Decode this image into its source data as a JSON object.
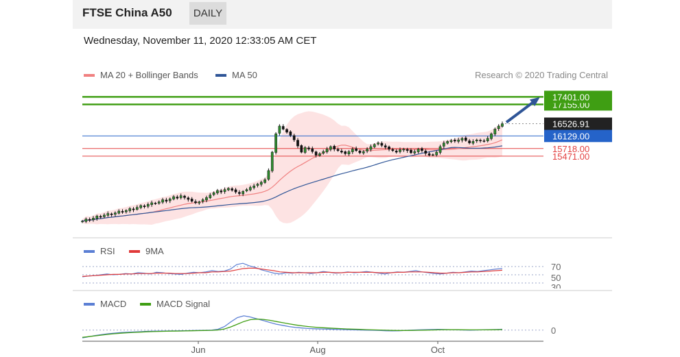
{
  "header": {
    "title": "FTSE China A50",
    "period": "DAILY"
  },
  "timestamp": "Wednesday, November 11, 2020 12:33:05 AM CET",
  "copyright": "Research © 2020 Trading Central",
  "colors": {
    "ma20": "#f08080",
    "ma50": "#2f5597",
    "bands": "#fde3e3",
    "resistance": "#3f9e13",
    "pivot": "#2563c9",
    "support": "#e34040",
    "last": "#222222",
    "rsi": "#5b7fd4",
    "rsi_ma": "#e03a3a",
    "macd": "#5b7fd4",
    "macd_signal": "#3f9e13"
  },
  "legend": {
    "ma20": "MA 20 + Bollinger Bands",
    "ma50": "MA 50",
    "rsi": "RSI",
    "rsi_ma": "9MA",
    "macd": "MACD",
    "macd_signal": "MACD Signal"
  },
  "chart_data": [
    {
      "type": "candlestick",
      "panel": "price",
      "ylim": [
        13100,
        17700
      ],
      "x_ticks": [
        "Jun",
        "Aug",
        "Oct"
      ],
      "closes": [
        13350,
        13420,
        13380,
        13450,
        13520,
        13480,
        13550,
        13600,
        13560,
        13620,
        13680,
        13640,
        13700,
        13760,
        13720,
        13800,
        13860,
        13820,
        13900,
        13950,
        13920,
        13980,
        14050,
        14000,
        14080,
        14150,
        14100,
        14180,
        14120,
        14060,
        14000,
        13950,
        13980,
        14050,
        14120,
        14200,
        14280,
        14350,
        14300,
        14380,
        14420,
        14360,
        14300,
        14250,
        14320,
        14380,
        14450,
        14500,
        14560,
        14620,
        14700,
        15000,
        15600,
        16200,
        16450,
        16350,
        16250,
        16150,
        16000,
        15800,
        15600,
        15750,
        15700,
        15620,
        15500,
        15550,
        15620,
        15700,
        15780,
        15700,
        15650,
        15600,
        15550,
        15620,
        15700,
        15650,
        15580,
        15620,
        15700,
        15780,
        15850,
        15900,
        15820,
        15760,
        15700,
        15650,
        15600,
        15680,
        15700,
        15650,
        15580,
        15620,
        15700,
        15650,
        15560,
        15500,
        15520,
        15600,
        15780,
        15900,
        15950,
        15980,
        15960,
        16000,
        16050,
        15980,
        15900,
        15950,
        16000,
        15980,
        15950,
        16050,
        16200,
        16350,
        16450,
        16526.91
      ],
      "levels": [
        {
          "label": "17401.00",
          "value": 17401,
          "kind": "resistance"
        },
        {
          "label": "17155.00",
          "value": 17155,
          "kind": "resistance"
        },
        {
          "label": "16526.91",
          "value": 16526.91,
          "kind": "last"
        },
        {
          "label": "16129.00",
          "value": 16129,
          "kind": "pivot"
        },
        {
          "label": "15718.00",
          "value": 15718,
          "kind": "support"
        },
        {
          "label": "15471.00",
          "value": 15471,
          "kind": "support"
        }
      ]
    },
    {
      "type": "line",
      "panel": "rsi",
      "ylim": [
        20,
        80
      ],
      "y_ticks": [
        "70",
        "50",
        "30"
      ],
      "series": [
        {
          "name": "RSI",
          "values": [
            45,
            47,
            48,
            50,
            52,
            50,
            51,
            53,
            52,
            55,
            54,
            52,
            56,
            55,
            53,
            52,
            51,
            54,
            56,
            55,
            57,
            60,
            58,
            59,
            64,
            75,
            78,
            72,
            68,
            62,
            58,
            54,
            52,
            55,
            54,
            56,
            55,
            53,
            55,
            58,
            56,
            54,
            55,
            57,
            55,
            56,
            58,
            56,
            54,
            52,
            55,
            57,
            56,
            58,
            60,
            57,
            55,
            53,
            52,
            54,
            56,
            55,
            57,
            59,
            58,
            60,
            62,
            64,
            65
          ]
        },
        {
          "name": "9MA",
          "values": [
            46,
            47,
            48,
            49,
            50,
            51,
            51,
            52,
            52,
            53,
            53,
            53,
            54,
            54,
            54,
            53,
            53,
            53,
            54,
            55,
            55,
            57,
            57,
            58,
            59,
            62,
            65,
            66,
            66,
            64,
            62,
            60,
            57,
            56,
            55,
            55,
            55,
            55,
            55,
            56,
            56,
            55,
            55,
            56,
            56,
            56,
            56,
            56,
            55,
            55,
            55,
            56,
            56,
            57,
            57,
            57,
            56,
            55,
            54,
            54,
            55,
            55,
            56,
            57,
            57,
            58,
            59,
            60,
            61
          ]
        }
      ]
    },
    {
      "type": "line",
      "panel": "macd",
      "y_ticks": [
        "0"
      ],
      "series": [
        {
          "name": "MACD",
          "values": [
            -260,
            -220,
            -180,
            -150,
            -120,
            -100,
            -80,
            -70,
            -60,
            -50,
            -40,
            -35,
            -30,
            -28,
            -25,
            -22,
            -18,
            -15,
            -10,
            -5,
            0,
            30,
            120,
            280,
            420,
            480,
            440,
            380,
            320,
            260,
            200,
            160,
            120,
            90,
            70,
            55,
            45,
            40,
            35,
            28,
            20,
            15,
            10,
            5,
            0,
            -5,
            -10,
            -20,
            -25,
            -20,
            -10,
            0,
            10,
            15,
            20,
            25,
            20,
            15,
            10,
            5,
            0,
            5,
            10,
            15,
            20,
            30
          ]
        },
        {
          "name": "MACD Signal",
          "values": [
            -240,
            -215,
            -190,
            -165,
            -140,
            -120,
            -102,
            -88,
            -76,
            -66,
            -56,
            -48,
            -42,
            -37,
            -33,
            -29,
            -25,
            -21,
            -17,
            -12,
            -7,
            5,
            40,
            110,
            200,
            290,
            350,
            370,
            360,
            330,
            290,
            250,
            210,
            175,
            145,
            120,
            98,
            82,
            70,
            60,
            50,
            40,
            32,
            24,
            17,
            10,
            4,
            -3,
            -9,
            -12,
            -12,
            -9,
            -5,
            0,
            5,
            10,
            13,
            14,
            13,
            11,
            9,
            8,
            9,
            11,
            14,
            18
          ]
        }
      ]
    }
  ]
}
